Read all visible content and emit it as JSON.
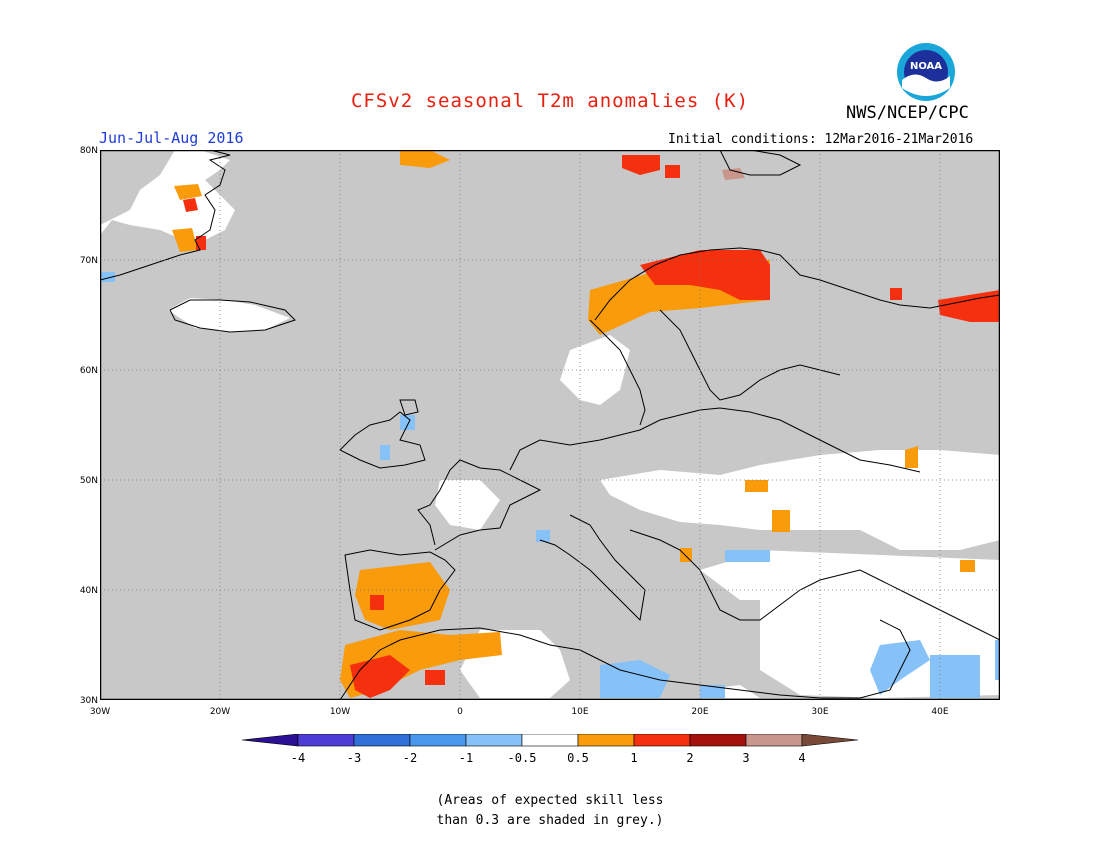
{
  "header": {
    "title": "CFSv2 seasonal T2m anomalies (K)",
    "agency": "NWS/NCEP/CPC",
    "season": "Jun-Jul-Aug 2016",
    "initial_conditions": "Initial conditions: 12Mar2016-21Mar2016",
    "logo_text": "NOAA"
  },
  "map": {
    "lat_labels": [
      "80N",
      "70N",
      "60N",
      "50N",
      "40N",
      "30N"
    ],
    "lon_labels": [
      "30W",
      "20W",
      "10W",
      "0",
      "10E",
      "20E",
      "30E",
      "40E"
    ],
    "lat_range": [
      30,
      80
    ],
    "lon_range": [
      -30,
      45
    ],
    "grid": "dotted",
    "background_color": "#c8c8c8"
  },
  "colorbar": {
    "tick_labels": [
      "-4",
      "-3",
      "-2",
      "-1",
      "-0.5",
      "0.5",
      "1",
      "2",
      "3",
      "4"
    ],
    "colors": [
      "#2b0f94",
      "#4d3dd6",
      "#2f6fd8",
      "#4a98ee",
      "#86c1f7",
      "#ffffff",
      "#f99b0a",
      "#f5300f",
      "#a5120e",
      "#c8968a",
      "#7a4a38"
    ]
  },
  "note": {
    "line1": "(Areas of expected skill less",
    "line2": "than 0.3 are shaded in grey.)"
  }
}
